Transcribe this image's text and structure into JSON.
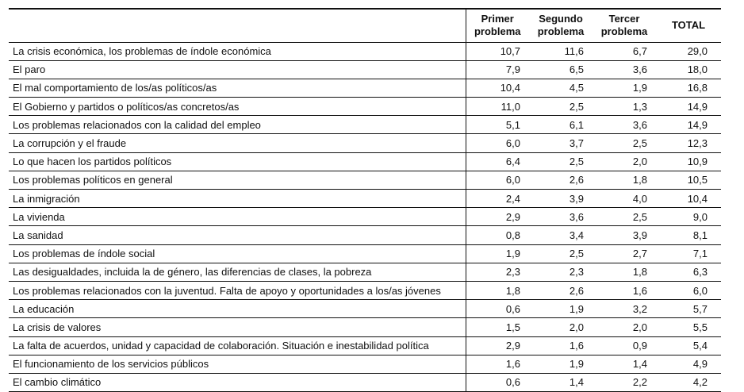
{
  "headers": {
    "primer": [
      "Primer",
      "problema"
    ],
    "segundo": [
      "Segundo",
      "problema"
    ],
    "tercer": [
      "Tercer",
      "problema"
    ],
    "total": "TOTAL"
  },
  "rows": [
    {
      "label": "La crisis económica, los problemas de índole económica",
      "primer": "10,7",
      "segundo": "11,6",
      "tercer": "6,7",
      "total": "29,0"
    },
    {
      "label": "El paro",
      "primer": "7,9",
      "segundo": "6,5",
      "tercer": "3,6",
      "total": "18,0"
    },
    {
      "label": "El mal comportamiento de los/as políticos/as",
      "primer": "10,4",
      "segundo": "4,5",
      "tercer": "1,9",
      "total": "16,8"
    },
    {
      "label": "El Gobierno y partidos o políticos/as concretos/as",
      "primer": "11,0",
      "segundo": "2,5",
      "tercer": "1,3",
      "total": "14,9"
    },
    {
      "label": "Los problemas relacionados con la calidad del empleo",
      "primer": "5,1",
      "segundo": "6,1",
      "tercer": "3,6",
      "total": "14,9"
    },
    {
      "label": "La corrupción y el fraude",
      "primer": "6,0",
      "segundo": "3,7",
      "tercer": "2,5",
      "total": "12,3"
    },
    {
      "label": "Lo que hacen los partidos políticos",
      "primer": "6,4",
      "segundo": "2,5",
      "tercer": "2,0",
      "total": "10,9"
    },
    {
      "label": "Los problemas políticos en general",
      "primer": "6,0",
      "segundo": "2,6",
      "tercer": "1,8",
      "total": "10,5"
    },
    {
      "label": "La inmigración",
      "primer": "2,4",
      "segundo": "3,9",
      "tercer": "4,0",
      "total": "10,4"
    },
    {
      "label": "La vivienda",
      "primer": "2,9",
      "segundo": "3,6",
      "tercer": "2,5",
      "total": "9,0"
    },
    {
      "label": "La sanidad",
      "primer": "0,8",
      "segundo": "3,4",
      "tercer": "3,9",
      "total": "8,1"
    },
    {
      "label": "Los problemas de índole social",
      "primer": "1,9",
      "segundo": "2,5",
      "tercer": "2,7",
      "total": "7,1"
    },
    {
      "label": "Las desigualdades, incluida la de género, las diferencias de clases, la pobreza",
      "primer": "2,3",
      "segundo": "2,3",
      "tercer": "1,8",
      "total": "6,3"
    },
    {
      "label": "Los problemas relacionados con la juventud. Falta de apoyo y oportunidades a los/as jóvenes",
      "primer": "1,8",
      "segundo": "2,6",
      "tercer": "1,6",
      "total": "6,0"
    },
    {
      "label": "La educación",
      "primer": "0,6",
      "segundo": "1,9",
      "tercer": "3,2",
      "total": "5,7"
    },
    {
      "label": "La crisis de valores",
      "primer": "1,5",
      "segundo": "2,0",
      "tercer": "2,0",
      "total": "5,5"
    },
    {
      "label": "La falta de acuerdos, unidad y capacidad de colaboración. Situación e inestabilidad política",
      "primer": "2,9",
      "segundo": "1,6",
      "tercer": "0,9",
      "total": "5,4"
    },
    {
      "label": "El funcionamiento de los servicios públicos",
      "primer": "1,6",
      "segundo": "1,9",
      "tercer": "1,4",
      "total": "4,9"
    },
    {
      "label": "El cambio climático",
      "primer": "0,6",
      "segundo": "1,4",
      "tercer": "2,2",
      "total": "4,2"
    }
  ]
}
